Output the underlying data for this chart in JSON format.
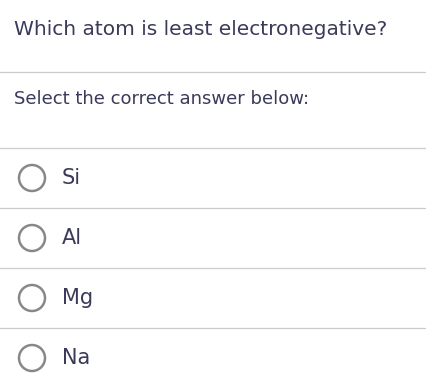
{
  "title": "Which atom is least electronegative?",
  "subtitle": "Select the correct answer below:",
  "options": [
    "Si",
    "Al",
    "Mg",
    "Na"
  ],
  "background_color": "#ffffff",
  "title_color": "#3a3a5a",
  "subtitle_color": "#3a3a5a",
  "option_color": "#3a3a5a",
  "line_color": "#cccccc",
  "circle_color": "#888888",
  "title_fontsize": 14.5,
  "subtitle_fontsize": 13,
  "option_fontsize": 15,
  "fig_width": 4.27,
  "fig_height": 3.88,
  "dpi": 100
}
